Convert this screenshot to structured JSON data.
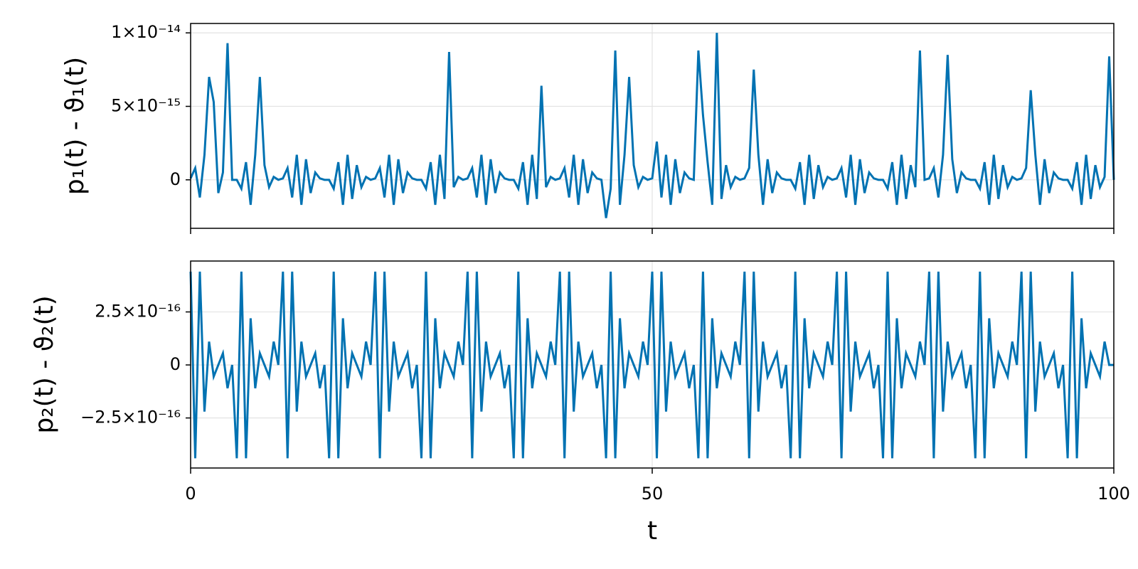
{
  "chart_data": [
    {
      "type": "line",
      "ylabel": "p₁(t) - ϑ₁(t)",
      "xlim": [
        0,
        100
      ],
      "xticks": [
        0,
        50,
        100
      ],
      "ylim": [
        -3.3e-15,
        1.064e-14
      ],
      "yticks": [
        0,
        {
          "value": 5e-15,
          "label": "5×10⁻¹⁵"
        },
        {
          "value": 1e-14,
          "label": "1×10⁻¹⁴"
        }
      ],
      "grid": true,
      "x": [
        0,
        0.5,
        1,
        1.5,
        2,
        2.5,
        3,
        3.5,
        4,
        4.5,
        5,
        5.5,
        6,
        6.5,
        7,
        7.5,
        8,
        8.5,
        9,
        9.5,
        10,
        10.5,
        11,
        11.5,
        12,
        12.5,
        13,
        13.5,
        14,
        14.5,
        15,
        15.5,
        16,
        16.5,
        17,
        17.5,
        18,
        18.5,
        19,
        19.5,
        20,
        20.5,
        21,
        21.5,
        22,
        22.5,
        23,
        23.5,
        24,
        24.5,
        25,
        25.5,
        26,
        26.5,
        27,
        27.5,
        28,
        28.5,
        29,
        29.5,
        30,
        30.5,
        31,
        31.5,
        32,
        32.5,
        33,
        33.5,
        34,
        34.5,
        35,
        35.5,
        36,
        36.5,
        37,
        37.5,
        38,
        38.5,
        39,
        39.5,
        40,
        40.5,
        41,
        41.5,
        42,
        42.5,
        43,
        43.5,
        44,
        44.5,
        45,
        45.5,
        46,
        46.5,
        47,
        47.5,
        48,
        48.5,
        49,
        49.5,
        50,
        50.5,
        51,
        51.5,
        52,
        52.5,
        53,
        53.5,
        54,
        54.5,
        55,
        55.5,
        56,
        56.5,
        57,
        57.5,
        58,
        58.5,
        59,
        59.5,
        60,
        60.5,
        61,
        61.5,
        62,
        62.5,
        63,
        63.5,
        64,
        64.5,
        65,
        65.5,
        66,
        66.5,
        67,
        67.5,
        68,
        68.5,
        69,
        69.5,
        70,
        70.5,
        71,
        71.5,
        72,
        72.5,
        73,
        73.5,
        74,
        74.5,
        75,
        75.5,
        76,
        76.5,
        77,
        77.5,
        78,
        78.5,
        79,
        79.5,
        80,
        80.5,
        81,
        81.5,
        82,
        82.5,
        83,
        83.5,
        84,
        84.5,
        85,
        85.5,
        86,
        86.5,
        87,
        87.5,
        88,
        88.5,
        89,
        89.5,
        90,
        90.5,
        91,
        91.5,
        92,
        92.5,
        93,
        93.5,
        94,
        94.5,
        95,
        95.5,
        96,
        96.5,
        97,
        97.5,
        98,
        98.5,
        99,
        99.5,
        100
      ],
      "series": [
        {
          "color": "#0072b2",
          "values": [
            1e-16,
            8e-16,
            -1.2e-15,
            1.7e-15,
            7e-15,
            5.3e-15,
            -9e-16,
            5e-16,
            9.3e-15,
            0,
            0,
            -6e-16,
            1.2e-15,
            -1.7e-15,
            1.7e-15,
            7e-15,
            1e-15,
            -5e-16,
            2e-16,
            0,
            1e-16,
            8e-16,
            -1.2e-15,
            1.7e-15,
            -1.7e-15,
            1.4e-15,
            -9e-16,
            5e-16,
            1e-16,
            0,
            0,
            -6e-16,
            1.2e-15,
            -1.7e-15,
            1.7e-15,
            -1.3e-15,
            1e-15,
            -5e-16,
            2e-16,
            0,
            1e-16,
            8e-16,
            -1.2e-15,
            1.7e-15,
            -1.7e-15,
            1.4e-15,
            -9e-16,
            5e-16,
            1e-16,
            0,
            0,
            -6e-16,
            1.2e-15,
            -1.7e-15,
            1.7e-15,
            -1.3e-15,
            8.7e-15,
            -5e-16,
            2e-16,
            0,
            1e-16,
            8e-16,
            -1.2e-15,
            1.7e-15,
            -1.7e-15,
            1.4e-15,
            -9e-16,
            5e-16,
            1e-16,
            0,
            0,
            -6e-16,
            1.2e-15,
            -1.7e-15,
            1.7e-15,
            -1.3e-15,
            6.4e-15,
            -5e-16,
            2e-16,
            0,
            1e-16,
            8e-16,
            -1.2e-15,
            1.7e-15,
            -1.7e-15,
            1.4e-15,
            -9e-16,
            5e-16,
            1e-16,
            0,
            -2.6e-15,
            -6e-16,
            8.8e-15,
            -1.7e-15,
            1.7e-15,
            7e-15,
            1e-15,
            -5e-16,
            2e-16,
            0,
            1e-16,
            2.6e-15,
            -1.2e-15,
            1.7e-15,
            -1.7e-15,
            1.4e-15,
            -9e-16,
            5e-16,
            1e-16,
            0,
            8.8e-15,
            4.4e-15,
            1.2e-15,
            -1.7e-15,
            1e-14,
            -1.3e-15,
            1e-15,
            -5e-16,
            2e-16,
            0,
            1e-16,
            8e-16,
            7.5e-15,
            1.7e-15,
            -1.7e-15,
            1.4e-15,
            -9e-16,
            5e-16,
            1e-16,
            0,
            0,
            -6e-16,
            1.2e-15,
            -1.7e-15,
            1.7e-15,
            -1.3e-15,
            1e-15,
            -5e-16,
            2e-16,
            0,
            1e-16,
            8e-16,
            -1.2e-15,
            1.7e-15,
            -1.7e-15,
            1.4e-15,
            -9e-16,
            5e-16,
            1e-16,
            0,
            0,
            -6e-16,
            1.2e-15,
            -1.7e-15,
            1.7e-15,
            -1.3e-15,
            1e-15,
            -5e-16,
            8.8e-15,
            0,
            1e-16,
            8e-16,
            -1.2e-15,
            1.7e-15,
            8.5e-15,
            1.4e-15,
            -9e-16,
            5e-16,
            1e-16,
            0,
            0,
            -6e-16,
            1.2e-15,
            -1.7e-15,
            1.7e-15,
            -1.3e-15,
            1e-15,
            -5e-16,
            2e-16,
            0,
            1e-16,
            8e-16,
            6.1e-15,
            1.7e-15,
            -1.7e-15,
            1.4e-15,
            -9e-16,
            5e-16,
            1e-16,
            0,
            0,
            -6e-16,
            1.2e-15,
            -1.7e-15,
            1.7e-15,
            -1.3e-15,
            1e-15,
            -5e-16,
            2e-16,
            8.4e-15,
            0
          ]
        }
      ]
    },
    {
      "type": "line",
      "ylabel": "p₂(t) - ϑ₂(t)",
      "xlabel": "t",
      "xlim": [
        0,
        100
      ],
      "xticks": [
        0,
        50,
        100
      ],
      "ylim": [
        -4.86e-16,
        4.9e-16
      ],
      "yticks": [
        {
          "value": -2.5e-16,
          "label": "−2.5×10⁻¹⁶"
        },
        0,
        {
          "value": 2.5e-16,
          "label": "2.5×10⁻¹⁶"
        }
      ],
      "grid": true,
      "x": [
        0,
        0.5,
        1,
        1.5,
        2,
        2.5,
        3,
        3.5,
        4,
        4.5,
        5,
        5.5,
        6,
        6.5,
        7,
        7.5,
        8,
        8.5,
        9,
        9.5,
        10,
        10.5,
        11,
        11.5,
        12,
        12.5,
        13,
        13.5,
        14,
        14.5,
        15,
        15.5,
        16,
        16.5,
        17,
        17.5,
        18,
        18.5,
        19,
        19.5,
        20,
        20.5,
        21,
        21.5,
        22,
        22.5,
        23,
        23.5,
        24,
        24.5,
        25,
        25.5,
        26,
        26.5,
        27,
        27.5,
        28,
        28.5,
        29,
        29.5,
        30,
        30.5,
        31,
        31.5,
        32,
        32.5,
        33,
        33.5,
        34,
        34.5,
        35,
        35.5,
        36,
        36.5,
        37,
        37.5,
        38,
        38.5,
        39,
        39.5,
        40,
        40.5,
        41,
        41.5,
        42,
        42.5,
        43,
        43.5,
        44,
        44.5,
        45,
        45.5,
        46,
        46.5,
        47,
        47.5,
        48,
        48.5,
        49,
        49.5,
        50,
        50.5,
        51,
        51.5,
        52,
        52.5,
        53,
        53.5,
        54,
        54.5,
        55,
        55.5,
        56,
        56.5,
        57,
        57.5,
        58,
        58.5,
        59,
        59.5,
        60,
        60.5,
        61,
        61.5,
        62,
        62.5,
        63,
        63.5,
        64,
        64.5,
        65,
        65.5,
        66,
        66.5,
        67,
        67.5,
        68,
        68.5,
        69,
        69.5,
        70,
        70.5,
        71,
        71.5,
        72,
        72.5,
        73,
        73.5,
        74,
        74.5,
        75,
        75.5,
        76,
        76.5,
        77,
        77.5,
        78,
        78.5,
        79,
        79.5,
        80,
        80.5,
        81,
        81.5,
        82,
        82.5,
        83,
        83.5,
        84,
        84.5,
        85,
        85.5,
        86,
        86.5,
        87,
        87.5,
        88,
        88.5,
        89,
        89.5,
        90,
        90.5,
        91,
        91.5,
        92,
        92.5,
        93,
        93.5,
        94,
        94.5,
        95,
        95.5,
        96,
        96.5,
        97,
        97.5,
        98,
        98.5,
        99,
        99.5,
        100
      ],
      "series": [
        {
          "color": "#0072b2",
          "values": [
            4.4e-16,
            -4.4e-16,
            4.4e-16,
            -2.2e-16,
            1.1e-16,
            -5.5e-17,
            0,
            5.5e-17,
            -1.1e-16,
            0,
            -4.4e-16,
            4.4e-16,
            -4.4e-16,
            2.2e-16,
            -1.1e-16,
            5.5e-17,
            0,
            -5.5e-17,
            1.1e-16,
            0,
            4.4e-16,
            -4.4e-16,
            4.4e-16,
            -2.2e-16,
            1.1e-16,
            -5.5e-17,
            0,
            5.5e-17,
            -1.1e-16,
            0,
            -4.4e-16,
            4.4e-16,
            -4.4e-16,
            2.2e-16,
            -1.1e-16,
            5.5e-17,
            0,
            -5.5e-17,
            1.1e-16,
            0,
            4.4e-16,
            -4.4e-16,
            4.4e-16,
            -2.2e-16,
            1.1e-16,
            -5.5e-17,
            0,
            5.5e-17,
            -1.1e-16,
            0,
            -4.4e-16,
            4.4e-16,
            -4.4e-16,
            2.2e-16,
            -1.1e-16,
            5.5e-17,
            0,
            -5.5e-17,
            1.1e-16,
            0,
            4.4e-16,
            -4.4e-16,
            4.4e-16,
            -2.2e-16,
            1.1e-16,
            -5.5e-17,
            0,
            5.5e-17,
            -1.1e-16,
            0,
            -4.4e-16,
            4.4e-16,
            -4.4e-16,
            2.2e-16,
            -1.1e-16,
            5.5e-17,
            0,
            -5.5e-17,
            1.1e-16,
            0,
            4.4e-16,
            -4.4e-16,
            4.4e-16,
            -2.2e-16,
            1.1e-16,
            -5.5e-17,
            0,
            5.5e-17,
            -1.1e-16,
            0,
            -4.4e-16,
            4.4e-16,
            -4.4e-16,
            2.2e-16,
            -1.1e-16,
            5.5e-17,
            0,
            -5.5e-17,
            1.1e-16,
            0,
            4.4e-16,
            -4.4e-16,
            4.4e-16,
            -2.2e-16,
            1.1e-16,
            -5.5e-17,
            0,
            5.5e-17,
            -1.1e-16,
            0,
            -4.4e-16,
            4.4e-16,
            -4.4e-16,
            2.2e-16,
            -1.1e-16,
            5.5e-17,
            0,
            -5.5e-17,
            1.1e-16,
            0,
            4.4e-16,
            -4.4e-16,
            4.4e-16,
            -2.2e-16,
            1.1e-16,
            -5.5e-17,
            0,
            5.5e-17,
            -1.1e-16,
            0,
            -4.4e-16,
            4.4e-16,
            -4.4e-16,
            2.2e-16,
            -1.1e-16,
            5.5e-17,
            0,
            -5.5e-17,
            1.1e-16,
            0,
            4.4e-16,
            -4.4e-16,
            4.4e-16,
            -2.2e-16,
            1.1e-16,
            -5.5e-17,
            0,
            5.5e-17,
            -1.1e-16,
            0,
            -4.4e-16,
            4.4e-16,
            -4.4e-16,
            2.2e-16,
            -1.1e-16,
            5.5e-17,
            0,
            -5.5e-17,
            1.1e-16,
            0,
            4.4e-16,
            -4.4e-16,
            4.4e-16,
            -2.2e-16,
            1.1e-16,
            -5.5e-17,
            0,
            5.5e-17,
            -1.1e-16,
            0,
            -4.4e-16,
            4.4e-16,
            -4.4e-16,
            2.2e-16,
            -1.1e-16,
            5.5e-17,
            0,
            -5.5e-17,
            1.1e-16,
            0,
            4.4e-16,
            -4.4e-16,
            4.4e-16,
            -2.2e-16,
            1.1e-16,
            -5.5e-17,
            0,
            5.5e-17,
            -1.1e-16,
            0,
            -4.4e-16,
            4.4e-16,
            -4.4e-16,
            2.2e-16,
            -1.1e-16,
            5.5e-17,
            0,
            -5.5e-17,
            1.1e-16,
            0,
            0
          ]
        }
      ]
    }
  ]
}
